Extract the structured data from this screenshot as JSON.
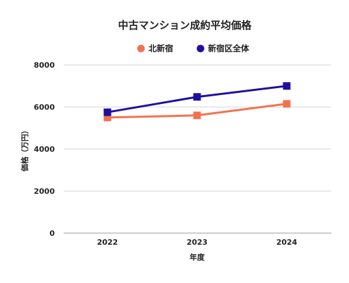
{
  "chart_data": {
    "type": "line",
    "title": "中古マンション成約平均価格",
    "xlabel": "年度",
    "ylabel": "価格（万円）",
    "categories": [
      "2022",
      "2023",
      "2024"
    ],
    "ylim": [
      0,
      8000
    ],
    "yticks": [
      0,
      2000,
      4000,
      6000,
      8000
    ],
    "grid": true,
    "legend_position": "top-center",
    "series": [
      {
        "name": "北新宿",
        "color": "#F4714F",
        "marker": "square",
        "values": [
          5500,
          5600,
          6150
        ]
      },
      {
        "name": "新宿区全体",
        "color": "#1F0FA0",
        "marker": "square",
        "values": [
          5750,
          6480,
          7000
        ]
      }
    ]
  }
}
